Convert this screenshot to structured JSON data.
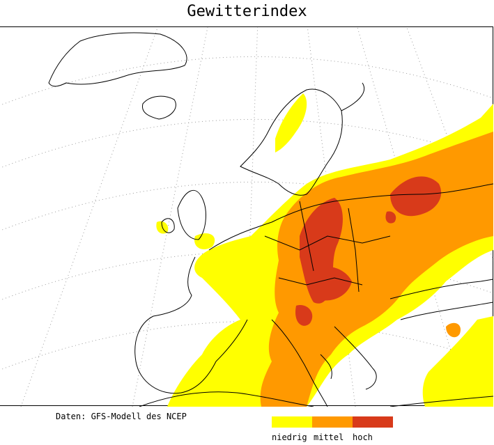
{
  "title": "Gewitterindex",
  "credit": "Daten: GFS-Modell des NCEP",
  "legend": [
    {
      "label": "niedrig",
      "color": "#ffff00"
    },
    {
      "label": "mittel",
      "color": "#ff9900"
    },
    {
      "label": "hoch",
      "color": "#d83a1a"
    }
  ],
  "map": {
    "region": "Europe",
    "graticule": "dotted",
    "coastline_color": "#000000"
  }
}
